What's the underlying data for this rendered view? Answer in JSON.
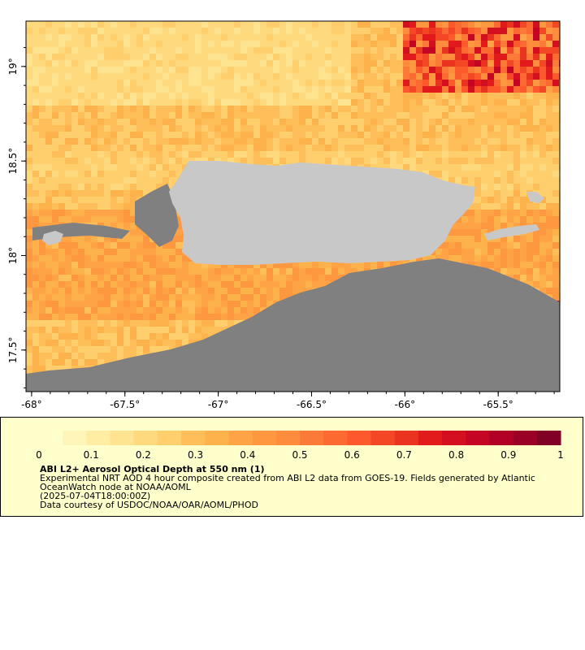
{
  "map": {
    "x_ticks": [
      {
        "value": -68,
        "label": "-68°"
      },
      {
        "value": -67.5,
        "label": "-67.5°"
      },
      {
        "value": -67,
        "label": "-67°"
      },
      {
        "value": -66.5,
        "label": "-66.5°"
      },
      {
        "value": -66,
        "label": "-66°"
      },
      {
        "value": -65.5,
        "label": "-65.5°"
      }
    ],
    "y_ticks": [
      {
        "value": 19,
        "label": "19°"
      },
      {
        "value": 18.5,
        "label": "18.5°"
      },
      {
        "value": 18,
        "label": "18°"
      },
      {
        "value": 17.5,
        "label": "17.5°"
      }
    ],
    "lon_range": [
      -68.03,
      -65.17
    ],
    "lat_range": [
      17.28,
      19.24
    ],
    "colors": {
      "land": "#c8c8c8",
      "no_data": "#808080"
    }
  },
  "legend": {
    "min_label": "0",
    "max_label": "1",
    "tick_labels": [
      "0.1",
      "0.2",
      "0.3",
      "0.4",
      "0.5",
      "0.6",
      "0.7",
      "0.8",
      "0.9"
    ],
    "title": "ABI L2+ Aerosol Optical Depth at 550 nm (1)",
    "line1": "Experimental NRT AOD 4 hour composite created from ABI L2 data from GOES-19. Fields generated by Atlantic",
    "line2": "OceanWatch node at NOAA/AOML",
    "line3": "(2025-07-04T18:00:00Z)",
    "line4": "Data courtesy of USDOC/NOAA/OAR/AOML/PHOD",
    "colors": [
      "#ffffcc",
      "#fff5b8",
      "#ffeda4",
      "#fee391",
      "#fed97e",
      "#fecf6c",
      "#febf5a",
      "#feb24c",
      "#fea446",
      "#fd9840",
      "#fd8d3c",
      "#fc7a37",
      "#fc6a32",
      "#fc5a2d",
      "#f44726",
      "#ea3420",
      "#e31a1c",
      "#d41020",
      "#c40624",
      "#b10026",
      "#9a0026",
      "#800026"
    ]
  }
}
